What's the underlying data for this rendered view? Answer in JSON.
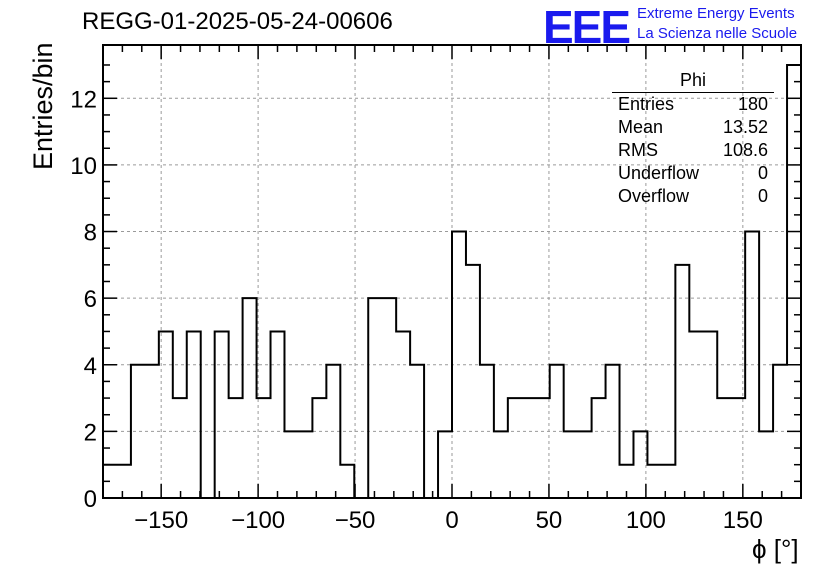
{
  "title": "REGG-01-2025-05-24-00606",
  "logo": {
    "mark": "EEE",
    "line1": "Extreme Energy Events",
    "line2": "La Scienza nelle Scuole",
    "color": "#1a1aee"
  },
  "stats": {
    "name": "Phi",
    "rows": [
      {
        "label": "Entries",
        "value": "180"
      },
      {
        "label": "Mean",
        "value": "13.52"
      },
      {
        "label": "RMS",
        "value": "108.6"
      },
      {
        "label": "Underflow",
        "value": "0"
      },
      {
        "label": "Overflow",
        "value": "0"
      }
    ]
  },
  "chart_data": {
    "type": "histogram",
    "title": "REGG-01-2025-05-24-00606",
    "xlabel": "ϕ [°]",
    "ylabel": "Entries/bin",
    "xlim": [
      -180,
      180
    ],
    "ylim": [
      0,
      13.6
    ],
    "bin_width": 7.2,
    "grid": true,
    "x_ticks": [
      -150,
      -100,
      -50,
      0,
      50,
      100,
      150
    ],
    "x_tick_labels": [
      "−150",
      "−100",
      "−50",
      "0",
      "50",
      "100",
      "150"
    ],
    "y_ticks": [
      0,
      2,
      4,
      6,
      8,
      10,
      12
    ],
    "values": [
      1,
      1,
      4,
      4,
      5,
      3,
      5,
      0,
      5,
      3,
      6,
      3,
      5,
      2,
      2,
      3,
      4,
      1,
      0,
      6,
      6,
      5,
      4,
      0,
      2,
      8,
      7,
      4,
      2,
      3,
      3,
      3,
      4,
      2,
      2,
      3,
      4,
      1,
      2,
      1,
      1,
      7,
      5,
      5,
      3,
      3,
      8,
      2,
      4,
      13
    ]
  }
}
